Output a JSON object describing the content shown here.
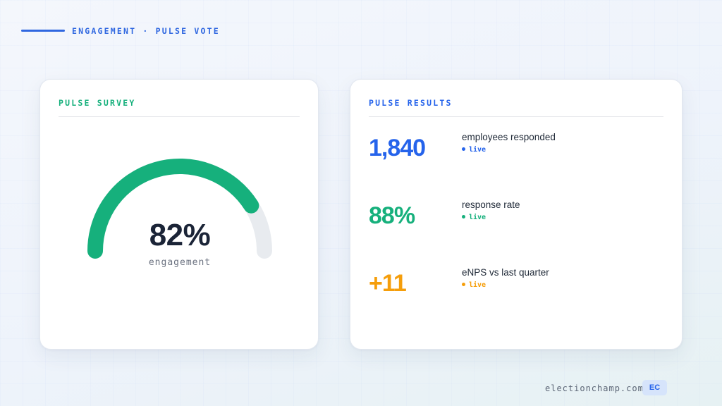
{
  "header": {
    "eyebrow": "ENGAGEMENT · PULSE VOTE"
  },
  "colors": {
    "accent_blue": "#2563eb",
    "accent_green": "#16b07c",
    "accent_amber": "#f59e0b",
    "gauge_track": "#e8ebef",
    "text_dark": "#1b2437"
  },
  "survey_card": {
    "title": "PULSE SURVEY",
    "gauge": {
      "value_label": "82%",
      "value_fraction": 0.82,
      "caption": "engagement"
    }
  },
  "results_card": {
    "title": "PULSE RESULTS",
    "stats": [
      {
        "value": "1,840",
        "label": "employees responded",
        "status": "live",
        "color": "#2563eb"
      },
      {
        "value": "88%",
        "label": "response rate",
        "status": "live",
        "color": "#16b07c"
      },
      {
        "value": "+11",
        "label": "eNPS vs last quarter",
        "status": "live",
        "color": "#f59e0b"
      }
    ]
  },
  "footer": {
    "url": "electionchamp.com",
    "badge": "EC"
  }
}
